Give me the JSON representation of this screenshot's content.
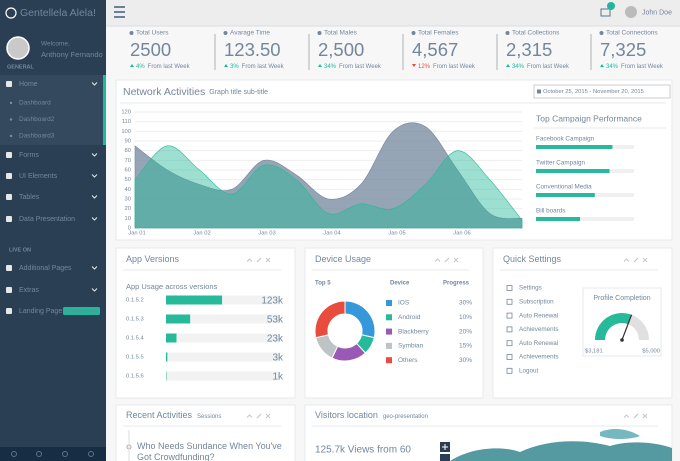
{
  "sidebar": {
    "brand": "Gentellela Alela!",
    "welcome": "Welcome,",
    "user": "Anthony Fernando",
    "section1": "GENERAL",
    "menu": [
      {
        "label": "Home",
        "sub": [
          "Dashboard",
          "Dashboard2",
          "Dashboard3"
        ]
      },
      {
        "label": "Forms"
      },
      {
        "label": "UI Elements"
      },
      {
        "label": "Tables"
      },
      {
        "label": "Data Presentation"
      }
    ],
    "section2": "LIVE ON",
    "menu2": [
      {
        "label": "Additional Pages"
      },
      {
        "label": "Extras"
      },
      {
        "label": "Landing Page",
        "badge": "Coming Soon"
      }
    ]
  },
  "topnav": {
    "badge": "6",
    "user": "John Doe"
  },
  "stats": [
    {
      "label": "Total Users",
      "value": "2500",
      "change": "4%",
      "note": "From last Week",
      "trend": "up"
    },
    {
      "label": "Avarage Time",
      "value": "123.50",
      "change": "3%",
      "note": "From last Week",
      "trend": "up"
    },
    {
      "label": "Total Males",
      "value": "2,500",
      "change": "34%",
      "note": "From last Week",
      "trend": "up",
      "highlight": true
    },
    {
      "label": "Total Females",
      "value": "4,567",
      "change": "12%",
      "note": "From last Week",
      "trend": "down"
    },
    {
      "label": "Total Collections",
      "value": "2,315",
      "change": "34%",
      "note": "From last Week",
      "trend": "up"
    },
    {
      "label": "Total Connections",
      "value": "7,325",
      "change": "34%",
      "note": "From last Week",
      "trend": "up"
    }
  ],
  "network": {
    "title": "Network Activities",
    "subtitle": "Graph title sub-title",
    "date_range": "October 25, 2015 - November 20, 2015",
    "chart": {
      "type": "area",
      "x_labels": [
        "Jan 01",
        "Jan 02",
        "Jan 03",
        "Jan 04",
        "Jan 05",
        "Jan 06"
      ],
      "ylim": [
        0,
        120
      ],
      "yticks": [
        0,
        10,
        20,
        30,
        40,
        50,
        60,
        70,
        80,
        90,
        100,
        110,
        120
      ],
      "grid": true,
      "series": [
        {
          "color": "#73879c",
          "values": [
            85,
            60,
            45,
            40,
            70,
            55,
            30,
            45,
            100,
            105,
            60,
            15,
            10
          ]
        },
        {
          "color": "#26b99a",
          "values": [
            50,
            85,
            60,
            35,
            65,
            50,
            15,
            25,
            20,
            45,
            80,
            50,
            8
          ]
        }
      ]
    },
    "campaigns": {
      "title": "Top Campaign Performance",
      "categories": [
        "Facebook Campaign",
        "Twitter Campaign",
        "Conventional Media",
        "Bill boards"
      ],
      "values": [
        78,
        75,
        60,
        45
      ],
      "xlim": [
        0,
        100
      ],
      "color": "#26b99a"
    }
  },
  "app_versions": {
    "title": "App Versions",
    "subtitle": "App Usage across versions",
    "categories": [
      "0.1.5.2",
      "0.1.5.3",
      "0.1.5.4",
      "0.1.5.5",
      "0.1.5.6"
    ],
    "values": [
      123000,
      53000,
      23000,
      3000,
      1000
    ],
    "value_labels": [
      "123k",
      "53k",
      "23k",
      "3k",
      "1k"
    ],
    "xlim": [
      0,
      250000
    ],
    "color": "#26b99a"
  },
  "device_usage": {
    "title": "Device Usage",
    "headers": [
      "Top 5",
      "Device",
      "Progress"
    ],
    "categories": [
      "IOS",
      "Android",
      "Blackberry",
      "Symbian",
      "Others"
    ],
    "values": [
      30,
      10,
      20,
      15,
      30
    ],
    "value_labels": [
      "30%",
      "10%",
      "20%",
      "15%",
      "30%"
    ],
    "colors": [
      "#3498db",
      "#26b99a",
      "#9b59b6",
      "#bdc3c7",
      "#e74c3c"
    ]
  },
  "quick_settings": {
    "title": "Quick Settings",
    "items": [
      "Settings",
      "Subscription",
      "Auto Renewal",
      "Achievements",
      "Auto Renewal",
      "Achievements",
      "Logout"
    ],
    "gauge": {
      "title": "Profile Completion",
      "min": {
        "value": 3181,
        "label": "$3,181"
      },
      "max": {
        "value": 5000,
        "label": "$5,000"
      },
      "value": 4300,
      "color": "#26b99a"
    }
  },
  "recent": {
    "title": "Recent Activities",
    "subtitle": "Sessions",
    "items": [
      "Who Needs Sundance When You've Got Crowdfunding?"
    ]
  },
  "visitors": {
    "title": "Visitors location",
    "subtitle": "geo-presentation",
    "headline": "125.7k Views from 60"
  }
}
